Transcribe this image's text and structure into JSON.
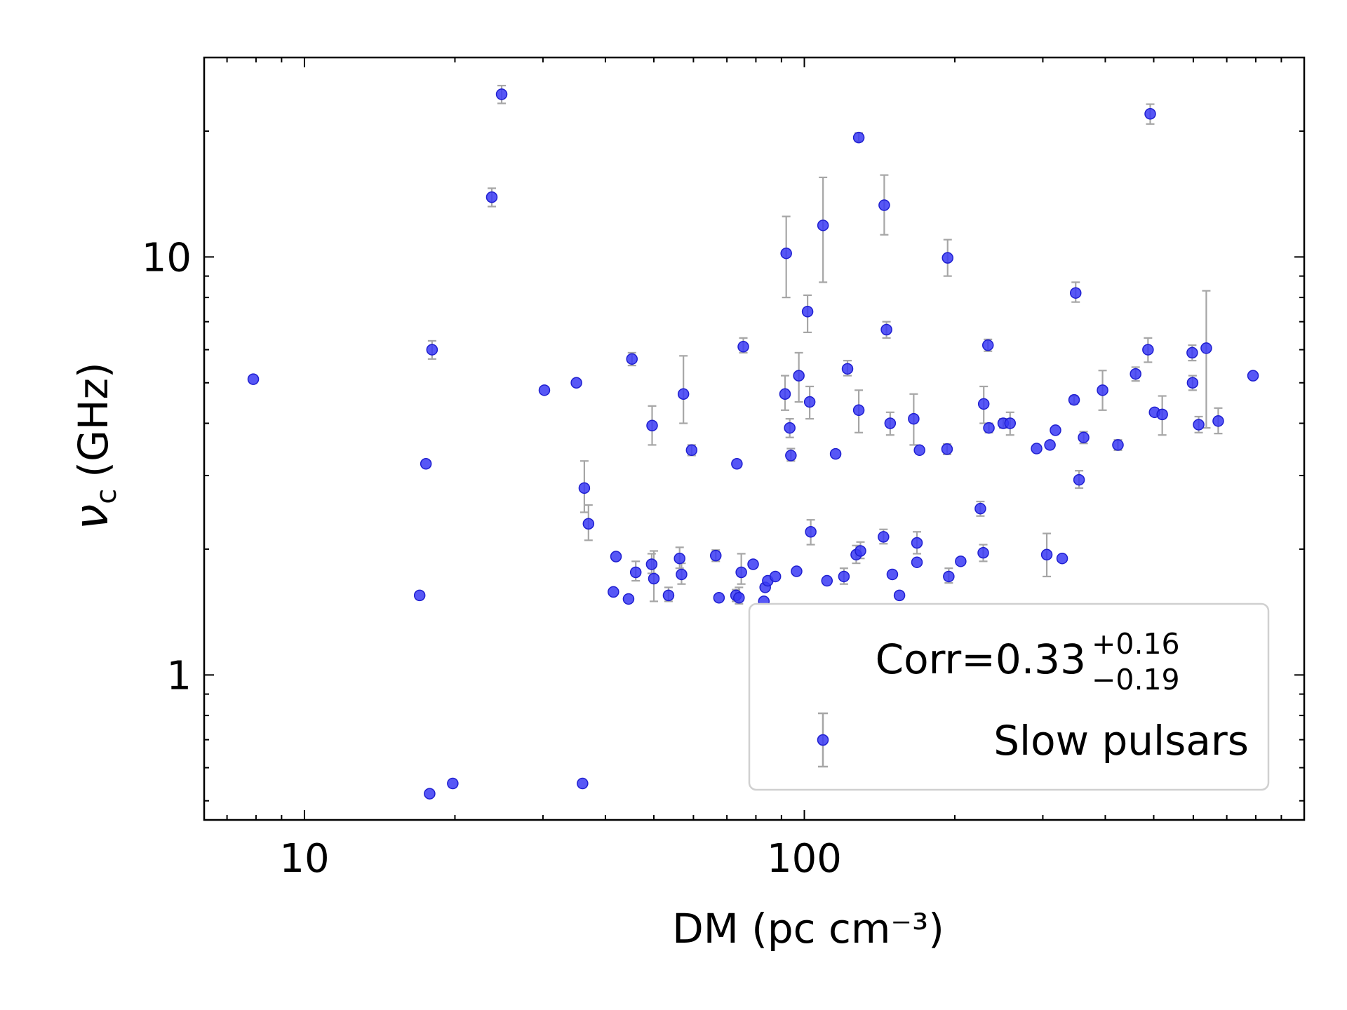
{
  "chart_data": {
    "type": "scatter",
    "xlabel": "DM (pc cm⁻³)",
    "ylabel": "ν",
    "ylabel_sub": "c",
    "ylabel_unit": "(GHz)",
    "xscale": "log",
    "yscale": "log",
    "xlim": [
      6.3,
      1000
    ],
    "ylim": [
      0.45,
      30
    ],
    "xticks": [
      {
        "v": 10,
        "label": "10"
      },
      {
        "v": 100,
        "label": "100"
      }
    ],
    "yticks": [
      {
        "v": 1,
        "label": "1"
      },
      {
        "v": 10,
        "label": "10"
      }
    ],
    "grid": false,
    "legend": {
      "placement": "lower-right",
      "corr_prefix": "Corr=0.33",
      "corr_plus": "+0.16",
      "corr_minus": "−0.19",
      "series_label": "Slow pulsars"
    },
    "colors": {
      "marker": "#3a3af5",
      "marker_edge": "#1f1fd0",
      "errorbar": "#a6a6a6"
    },
    "points": [
      {
        "x": 7.9,
        "y": 5.1
      },
      {
        "x": 17.0,
        "y": 1.55
      },
      {
        "x": 17.5,
        "y": 3.2
      },
      {
        "x": 17.8,
        "y": 0.52
      },
      {
        "x": 18.0,
        "y": 6.0,
        "lo": 5.7,
        "hi": 6.3
      },
      {
        "x": 19.8,
        "y": 0.55
      },
      {
        "x": 23.7,
        "y": 13.9,
        "lo": 13.2,
        "hi": 14.6
      },
      {
        "x": 24.8,
        "y": 24.5,
        "lo": 23.3,
        "hi": 25.7
      },
      {
        "x": 30.2,
        "y": 4.8
      },
      {
        "x": 35.0,
        "y": 5.0
      },
      {
        "x": 36.0,
        "y": 0.55
      },
      {
        "x": 36.3,
        "y": 2.8,
        "lo": 2.45,
        "hi": 3.25
      },
      {
        "x": 37.0,
        "y": 2.3,
        "lo": 2.1,
        "hi": 2.55
      },
      {
        "x": 41.5,
        "y": 1.58
      },
      {
        "x": 42.0,
        "y": 1.92
      },
      {
        "x": 44.5,
        "y": 1.52
      },
      {
        "x": 45.2,
        "y": 5.7,
        "lo": 5.5,
        "hi": 5.9
      },
      {
        "x": 46.0,
        "y": 1.76,
        "lo": 1.68,
        "hi": 1.87
      },
      {
        "x": 49.5,
        "y": 1.84,
        "lo": 1.75,
        "hi": 1.95
      },
      {
        "x": 49.6,
        "y": 3.95,
        "lo": 3.55,
        "hi": 4.4
      },
      {
        "x": 50.0,
        "y": 1.7,
        "lo": 1.5,
        "hi": 1.98
      },
      {
        "x": 53.5,
        "y": 1.55,
        "lo": 1.5,
        "hi": 1.62
      },
      {
        "x": 56.3,
        "y": 1.9,
        "lo": 1.8,
        "hi": 2.02
      },
      {
        "x": 56.8,
        "y": 1.74,
        "lo": 1.65,
        "hi": 1.85
      },
      {
        "x": 57.3,
        "y": 4.7,
        "lo": 4.0,
        "hi": 5.8
      },
      {
        "x": 59.5,
        "y": 3.45,
        "lo": 3.35,
        "hi": 3.55
      },
      {
        "x": 66.5,
        "y": 1.93,
        "lo": 1.87,
        "hi": 1.99
      },
      {
        "x": 67.5,
        "y": 1.53
      },
      {
        "x": 73.0,
        "y": 1.55,
        "lo": 1.5,
        "hi": 1.6
      },
      {
        "x": 73.3,
        "y": 3.2
      },
      {
        "x": 74.0,
        "y": 1.53,
        "lo": 1.48,
        "hi": 1.62
      },
      {
        "x": 74.8,
        "y": 1.76,
        "lo": 1.65,
        "hi": 1.95
      },
      {
        "x": 75.5,
        "y": 6.1,
        "lo": 5.9,
        "hi": 6.4
      },
      {
        "x": 79.0,
        "y": 1.84
      },
      {
        "x": 83.0,
        "y": 1.5
      },
      {
        "x": 83.5,
        "y": 1.62
      },
      {
        "x": 84.5,
        "y": 1.68
      },
      {
        "x": 87.5,
        "y": 1.72
      },
      {
        "x": 91.5,
        "y": 4.7,
        "lo": 4.3,
        "hi": 5.2
      },
      {
        "x": 92.0,
        "y": 10.2,
        "lo": 8.0,
        "hi": 12.5
      },
      {
        "x": 93.5,
        "y": 3.9,
        "lo": 3.7,
        "hi": 4.1
      },
      {
        "x": 94.0,
        "y": 3.35,
        "lo": 3.25,
        "hi": 3.48
      },
      {
        "x": 96.5,
        "y": 1.77
      },
      {
        "x": 97.5,
        "y": 5.2,
        "lo": 4.5,
        "hi": 5.9
      },
      {
        "x": 101.5,
        "y": 7.4,
        "lo": 6.6,
        "hi": 8.1
      },
      {
        "x": 102.5,
        "y": 4.5,
        "lo": 4.1,
        "hi": 4.9
      },
      {
        "x": 103.0,
        "y": 2.2,
        "lo": 2.05,
        "hi": 2.35
      },
      {
        "x": 109.0,
        "y": 11.9,
        "lo": 8.7,
        "hi": 15.5
      },
      {
        "x": 111.0,
        "y": 1.68
      },
      {
        "x": 115.5,
        "y": 3.38
      },
      {
        "x": 120.0,
        "y": 1.72,
        "lo": 1.65,
        "hi": 1.8
      },
      {
        "x": 122.0,
        "y": 5.4,
        "lo": 5.2,
        "hi": 5.65
      },
      {
        "x": 127.0,
        "y": 1.94,
        "lo": 1.85,
        "hi": 2.04
      },
      {
        "x": 128.5,
        "y": 4.3,
        "lo": 3.8,
        "hi": 4.8
      },
      {
        "x": 128.5,
        "y": 19.3,
        "lo": 18.9,
        "hi": 19.8
      },
      {
        "x": 129.5,
        "y": 1.98,
        "lo": 1.9,
        "hi": 2.08
      },
      {
        "x": 144.0,
        "y": 2.14,
        "lo": 2.06,
        "hi": 2.23
      },
      {
        "x": 144.5,
        "y": 13.3,
        "lo": 11.3,
        "hi": 15.7
      },
      {
        "x": 146.0,
        "y": 6.7,
        "lo": 6.4,
        "hi": 7.0
      },
      {
        "x": 148.5,
        "y": 4.0,
        "lo": 3.75,
        "hi": 4.25
      },
      {
        "x": 150.0,
        "y": 1.74
      },
      {
        "x": 155.0,
        "y": 1.55
      },
      {
        "x": 165.5,
        "y": 4.1,
        "lo": 3.55,
        "hi": 4.7
      },
      {
        "x": 168.0,
        "y": 1.86
      },
      {
        "x": 168.0,
        "y": 2.07,
        "lo": 1.95,
        "hi": 2.2
      },
      {
        "x": 170.0,
        "y": 3.45
      },
      {
        "x": 193.0,
        "y": 3.47,
        "lo": 3.37,
        "hi": 3.57
      },
      {
        "x": 193.5,
        "y": 9.95,
        "lo": 9.0,
        "hi": 11.0
      },
      {
        "x": 194.5,
        "y": 1.72,
        "lo": 1.66,
        "hi": 1.8
      },
      {
        "x": 205.5,
        "y": 1.87
      },
      {
        "x": 225.0,
        "y": 2.5,
        "lo": 2.4,
        "hi": 2.6
      },
      {
        "x": 228.0,
        "y": 1.96,
        "lo": 1.87,
        "hi": 2.05
      },
      {
        "x": 228.5,
        "y": 4.45,
        "lo": 4.0,
        "hi": 4.9
      },
      {
        "x": 233.0,
        "y": 6.15,
        "lo": 5.95,
        "hi": 6.35
      },
      {
        "x": 234.0,
        "y": 3.9,
        "lo": 3.8,
        "hi": 4.0
      },
      {
        "x": 250.0,
        "y": 4.0,
        "lo": 3.9,
        "hi": 4.1
      },
      {
        "x": 258.0,
        "y": 4.0,
        "lo": 3.75,
        "hi": 4.25
      },
      {
        "x": 291.5,
        "y": 3.48
      },
      {
        "x": 305.5,
        "y": 1.94,
        "lo": 1.72,
        "hi": 2.18
      },
      {
        "x": 310.0,
        "y": 3.55
      },
      {
        "x": 318.0,
        "y": 3.85
      },
      {
        "x": 328.0,
        "y": 1.9
      },
      {
        "x": 346.5,
        "y": 4.55,
        "lo": 4.45,
        "hi": 4.65
      },
      {
        "x": 349.0,
        "y": 8.2,
        "lo": 7.8,
        "hi": 8.7
      },
      {
        "x": 354.5,
        "y": 2.93,
        "lo": 2.8,
        "hi": 3.08
      },
      {
        "x": 362.0,
        "y": 3.7,
        "lo": 3.58,
        "hi": 3.82
      },
      {
        "x": 395.0,
        "y": 4.8,
        "lo": 4.3,
        "hi": 5.35
      },
      {
        "x": 424.0,
        "y": 3.55,
        "lo": 3.45,
        "hi": 3.65
      },
      {
        "x": 460.0,
        "y": 5.25,
        "lo": 5.05,
        "hi": 5.45
      },
      {
        "x": 487.0,
        "y": 6.0,
        "lo": 5.6,
        "hi": 6.4
      },
      {
        "x": 492.0,
        "y": 22.0,
        "lo": 20.8,
        "hi": 23.2
      },
      {
        "x": 502.0,
        "y": 4.25
      },
      {
        "x": 520.0,
        "y": 4.2,
        "lo": 3.75,
        "hi": 4.65
      },
      {
        "x": 597.0,
        "y": 5.9,
        "lo": 5.65,
        "hi": 6.15
      },
      {
        "x": 598.0,
        "y": 5.0,
        "lo": 4.8,
        "hi": 5.2
      },
      {
        "x": 615.0,
        "y": 3.97,
        "lo": 3.8,
        "hi": 4.15
      },
      {
        "x": 637.0,
        "y": 6.05,
        "lo": 3.9,
        "hi": 8.3
      },
      {
        "x": 673.0,
        "y": 4.05,
        "lo": 3.78,
        "hi": 4.35
      },
      {
        "x": 790.0,
        "y": 5.2
      }
    ]
  }
}
